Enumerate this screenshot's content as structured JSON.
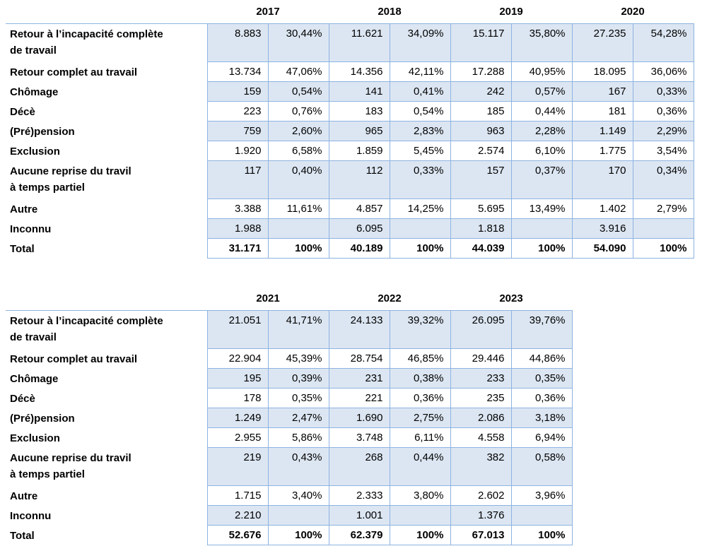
{
  "colors": {
    "cell_fill": "#dce6f2",
    "cell_border": "#8db3e2",
    "text": "#000000"
  },
  "tables": [
    {
      "years": [
        "2017",
        "2018",
        "2019",
        "2020"
      ],
      "rows": [
        {
          "label": "Retour à l’incapacité complète\nde travail",
          "values": [
            "8.883",
            "30,44%",
            "11.621",
            "34,09%",
            "15.117",
            "35,80%",
            "27.235",
            "54,28%"
          ]
        },
        {
          "label": "Retour complet au travail",
          "values": [
            "13.734",
            "47,06%",
            "14.356",
            "42,11%",
            "17.288",
            "40,95%",
            "18.095",
            "36,06%"
          ]
        },
        {
          "label": "Chômage",
          "values": [
            "159",
            "0,54%",
            "141",
            "0,41%",
            "242",
            "0,57%",
            "167",
            "0,33%"
          ]
        },
        {
          "label": "Décè",
          "values": [
            "223",
            "0,76%",
            "183",
            "0,54%",
            "185",
            "0,44%",
            "181",
            "0,36%"
          ]
        },
        {
          "label": "(Pré)pension",
          "values": [
            "759",
            "2,60%",
            "965",
            "2,83%",
            "963",
            "2,28%",
            "1.149",
            "2,29%"
          ]
        },
        {
          "label": "Exclusion",
          "values": [
            "1.920",
            "6,58%",
            "1.859",
            "5,45%",
            "2.574",
            "6,10%",
            "1.775",
            "3,54%"
          ]
        },
        {
          "label": "Aucune reprise du travil\nà temps partiel",
          "values": [
            "117",
            "0,40%",
            "112",
            "0,33%",
            "157",
            "0,37%",
            "170",
            "0,34%"
          ]
        },
        {
          "label": "Autre",
          "values": [
            "3.388",
            "11,61%",
            "4.857",
            "14,25%",
            "5.695",
            "13,49%",
            "1.402",
            "2,79%"
          ]
        },
        {
          "label": "Inconnu",
          "values": [
            "1.988",
            "",
            "6.095",
            "",
            "1.818",
            "",
            "3.916",
            ""
          ]
        },
        {
          "label": "Total",
          "values": [
            "31.171",
            "100%",
            "40.189",
            "100%",
            "44.039",
            "100%",
            "54.090",
            "100%"
          ],
          "total": true
        }
      ]
    },
    {
      "years": [
        "2021",
        "2022",
        "2023"
      ],
      "rows": [
        {
          "label": "Retour à l’incapacité complète\nde travail",
          "values": [
            "21.051",
            "41,71%",
            "24.133",
            "39,32%",
            "26.095",
            "39,76%"
          ]
        },
        {
          "label": "Retour complet au travail",
          "values": [
            "22.904",
            "45,39%",
            "28.754",
            "46,85%",
            "29.446",
            "44,86%"
          ]
        },
        {
          "label": "Chômage",
          "values": [
            "195",
            "0,39%",
            "231",
            "0,38%",
            "233",
            "0,35%"
          ]
        },
        {
          "label": "Décè",
          "values": [
            "178",
            "0,35%",
            "221",
            "0,36%",
            "235",
            "0,36%"
          ]
        },
        {
          "label": "(Pré)pension",
          "values": [
            "1.249",
            "2,47%",
            "1.690",
            "2,75%",
            "2.086",
            "3,18%"
          ]
        },
        {
          "label": "Exclusion",
          "values": [
            "2.955",
            "5,86%",
            "3.748",
            "6,11%",
            "4.558",
            "6,94%"
          ]
        },
        {
          "label": "Aucune reprise du travil\nà temps partiel",
          "values": [
            "219",
            "0,43%",
            "268",
            "0,44%",
            "382",
            "0,58%"
          ]
        },
        {
          "label": "Autre",
          "values": [
            "1.715",
            "3,40%",
            "2.333",
            "3,80%",
            "2.602",
            "3,96%"
          ]
        },
        {
          "label": "Inconnu",
          "values": [
            "2.210",
            "",
            "1.001",
            "",
            "1.376",
            ""
          ]
        },
        {
          "label": "Total",
          "values": [
            "52.676",
            "100%",
            "62.379",
            "100%",
            "67.013",
            "100%"
          ],
          "total": true
        }
      ]
    }
  ]
}
